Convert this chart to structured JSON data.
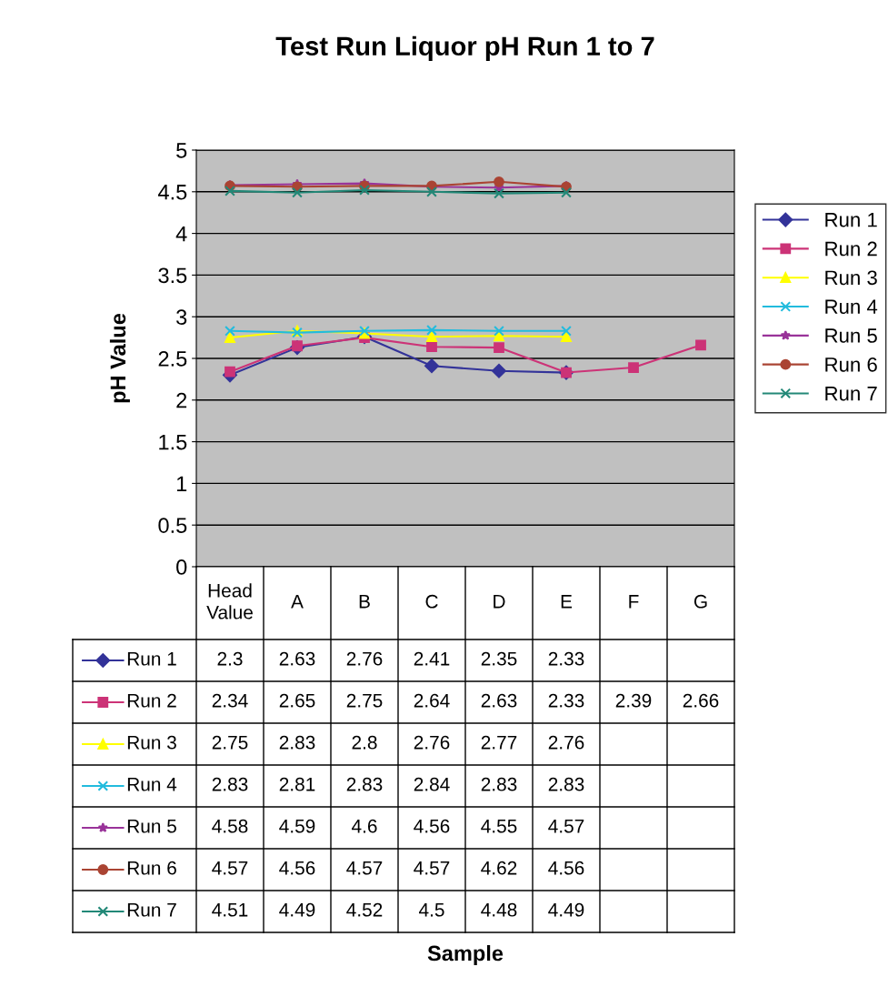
{
  "chart_data": {
    "type": "line",
    "title": "Test Run Liquor pH Run 1 to 7",
    "annotations": [
      "Sample"
    ],
    "ylabel": "pH Value",
    "categories": [
      "Head\nValue",
      "A",
      "B",
      "C",
      "D",
      "E",
      "F",
      "G"
    ],
    "series": [
      {
        "name": "Run 1",
        "color": "#333399",
        "marker": "diamond",
        "values": [
          2.3,
          2.63,
          2.76,
          2.41,
          2.35,
          2.33,
          null,
          null
        ]
      },
      {
        "name": "Run 2",
        "color": "#cc3377",
        "marker": "square",
        "values": [
          2.34,
          2.65,
          2.75,
          2.64,
          2.63,
          2.33,
          2.39,
          2.66
        ]
      },
      {
        "name": "Run 3",
        "color": "#ffff00",
        "marker": "triangle",
        "values": [
          2.75,
          2.83,
          2.8,
          2.76,
          2.77,
          2.76,
          null,
          null
        ]
      },
      {
        "name": "Run 4",
        "color": "#22bbdd",
        "marker": "cross",
        "values": [
          2.83,
          2.81,
          2.83,
          2.84,
          2.83,
          2.83,
          null,
          null
        ]
      },
      {
        "name": "Run 5",
        "color": "#993399",
        "marker": "star",
        "values": [
          4.58,
          4.59,
          4.6,
          4.56,
          4.55,
          4.57,
          null,
          null
        ]
      },
      {
        "name": "Run 6",
        "color": "#aa4433",
        "marker": "circle",
        "values": [
          4.57,
          4.56,
          4.57,
          4.57,
          4.62,
          4.56,
          null,
          null
        ]
      },
      {
        "name": "Run 7",
        "color": "#228877",
        "marker": "cross",
        "values": [
          4.51,
          4.49,
          4.52,
          4.5,
          4.48,
          4.49,
          null,
          null
        ]
      }
    ],
    "ylim": [
      0,
      5
    ],
    "yticks": [
      0,
      0.5,
      1,
      1.5,
      2,
      2.5,
      3,
      3.5,
      4,
      4.5,
      5
    ],
    "grid": "y",
    "legend": "right",
    "data_labels": true
  }
}
